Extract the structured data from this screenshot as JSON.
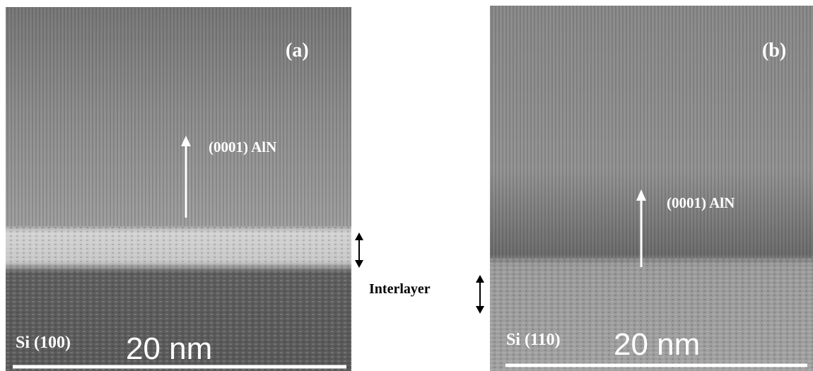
{
  "panels": [
    {
      "label": "(a)",
      "annotation": "(0001) AlN",
      "substrate": "Si (100)",
      "scale_bar": "20 nm"
    },
    {
      "label": "(b)",
      "annotation": "(0001) AlN",
      "substrate": "Si (110)",
      "scale_bar": "20 nm"
    }
  ],
  "interlayer_label": "Interlayer"
}
